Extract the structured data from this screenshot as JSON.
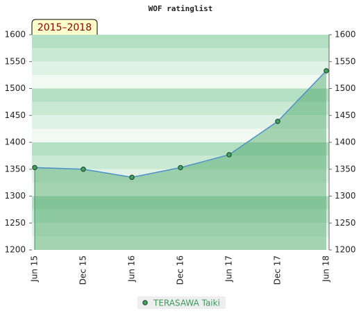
{
  "chart_data": {
    "type": "line",
    "title": "WOF ratinglist",
    "badge": "2015–2018",
    "categories": [
      "Jun 15",
      "Dec 15",
      "Jun 16",
      "Dec 16",
      "Jun 17",
      "Dec 17",
      "Jun 18"
    ],
    "series": [
      {
        "name": "TERASAWA Taiki",
        "color": "#4a90c8",
        "values": [
          1353,
          1350,
          1335,
          1353,
          1377,
          1439,
          1533
        ]
      }
    ],
    "ylim": [
      1200,
      1600
    ],
    "yticks": [
      1200,
      1250,
      1300,
      1350,
      1400,
      1450,
      1500,
      1550,
      1600
    ],
    "y2lim": [
      1200,
      1600
    ],
    "y2ticks": [
      1200,
      1250,
      1300,
      1350,
      1400,
      1450,
      1500,
      1550,
      1600
    ],
    "area": true
  }
}
